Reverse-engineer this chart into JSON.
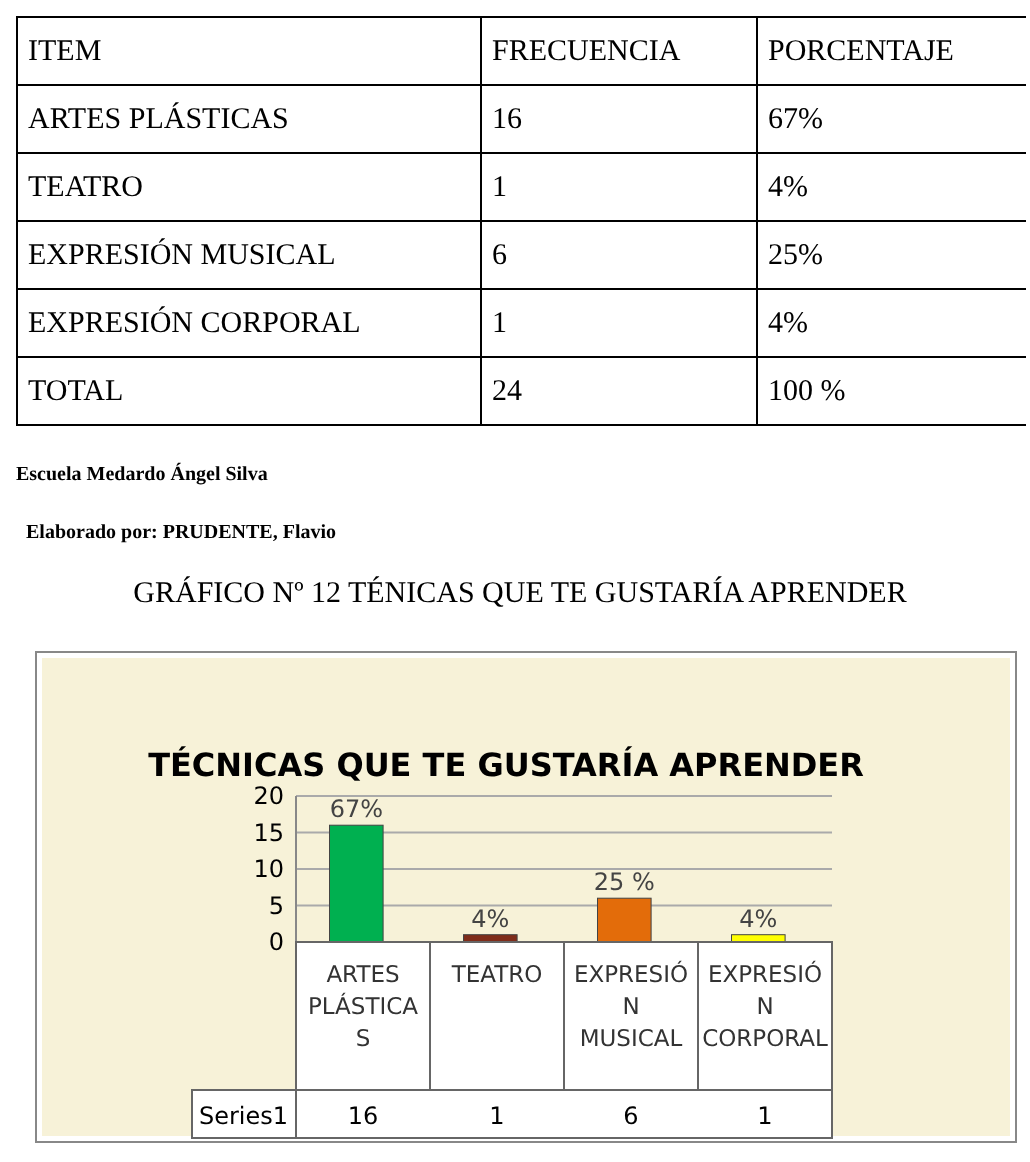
{
  "chart_data": [
    {
      "type": "other",
      "annotations": [
        "ITEM",
        "FRECUENCIA",
        "PORCENTAJE",
        "ARTES PLÁSTICAS",
        "16",
        "67%",
        "TEATRO",
        "1",
        "4%",
        "EXPRESIÓN MUSICAL",
        "6",
        "25%",
        "EXPRESIÓN CORPORAL",
        "1",
        "4%",
        "TOTAL",
        "24",
        "100 %"
      ]
    },
    {
      "type": "bar",
      "subtitle": "GRÁFICO Nº 12 TÉNICAS QUE TE GUSTARÍA APRENDER",
      "title": "TÉCNICAS QUE TE GUSTARÍA APRENDER",
      "annotations": [
        "Escuela Medardo Ángel Silva",
        "Elaborado por: PRUDENTE, Flavio",
        {
          "text": "67%",
          "x": "ARTES PLÁSTICAS",
          "y": 16
        },
        {
          "text": "4%",
          "x": "TEATRO",
          "y": 1
        },
        {
          "text": "25 %",
          "x": "EXPRESIÓN MUSICAL",
          "y": 6
        },
        {
          "text": "4%",
          "x": "EXPRESIÓN CORPORAL",
          "y": 1
        }
      ],
      "categories": [
        "ARTES PLÁSTICAS",
        "TEATRO",
        "EXPRESIÓN MUSICAL",
        "EXPRESIÓN CORPORAL"
      ],
      "series": [
        {
          "name": "Series1",
          "values": [
            16,
            1,
            6,
            1
          ],
          "colors": [
            "#00b050",
            "#7f2c1a",
            "#e36c0a",
            "#ffff00"
          ]
        }
      ],
      "ylim": [
        0,
        20
      ],
      "yticks": [
        0,
        5,
        10,
        15,
        20
      ],
      "grid": "y",
      "data_labels": true
    }
  ]
}
